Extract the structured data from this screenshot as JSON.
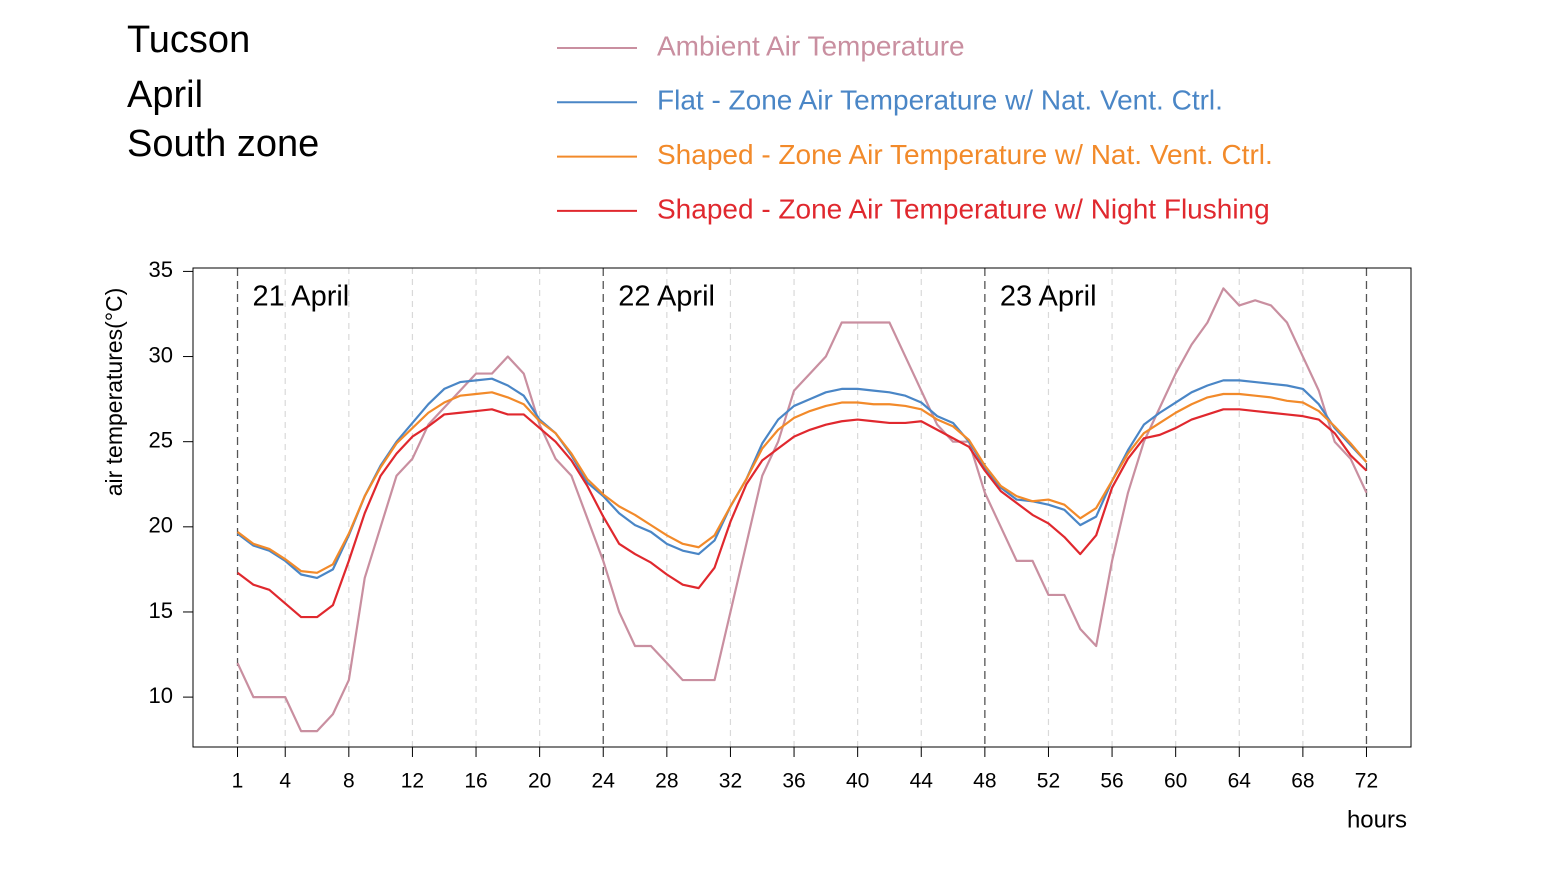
{
  "chart_data": {
    "type": "line",
    "title_lines": [
      "Tucson",
      "April",
      "South zone"
    ],
    "xlabel": "hours",
    "ylabel": "air temperatures(°C)",
    "annotations": [
      {
        "text": "21 April",
        "x": 1
      },
      {
        "text": "22 April",
        "x": 24
      },
      {
        "text": "23 April",
        "x": 48
      }
    ],
    "day_lines": [
      1,
      24,
      48,
      72
    ],
    "x": [
      1,
      2,
      3,
      4,
      5,
      6,
      7,
      8,
      9,
      10,
      11,
      12,
      13,
      14,
      15,
      16,
      17,
      18,
      19,
      20,
      21,
      22,
      23,
      24,
      25,
      26,
      27,
      28,
      29,
      30,
      31,
      32,
      33,
      34,
      35,
      36,
      37,
      38,
      39,
      40,
      41,
      42,
      43,
      44,
      45,
      46,
      47,
      48,
      49,
      50,
      51,
      52,
      53,
      54,
      55,
      56,
      57,
      58,
      59,
      60,
      61,
      62,
      63,
      64,
      65,
      66,
      67,
      68,
      69,
      70,
      71,
      72
    ],
    "xlim": [
      -1.8,
      74.8
    ],
    "xticks": [
      1,
      4,
      8,
      12,
      16,
      20,
      24,
      28,
      32,
      36,
      40,
      44,
      48,
      52,
      56,
      60,
      64,
      68,
      72
    ],
    "ylim": [
      7.07,
      35.2
    ],
    "yticks": [
      10,
      15,
      20,
      25,
      30,
      35
    ],
    "grid": true,
    "series": [
      {
        "name": "Ambient Air Temperature",
        "color": "#c98fa0",
        "values": [
          12,
          10,
          10,
          10,
          8,
          8,
          9,
          11,
          17,
          20,
          23,
          24,
          26,
          27,
          28,
          29,
          29,
          30,
          29,
          26,
          24,
          23,
          20.5,
          18,
          15,
          13,
          13,
          12,
          11,
          11,
          11,
          15,
          19,
          23,
          25,
          28,
          29,
          30,
          32,
          32,
          32,
          32,
          30,
          28,
          26,
          25,
          25,
          22,
          20,
          18,
          18,
          16,
          16,
          14,
          13,
          18,
          22,
          25,
          27,
          29,
          30.7,
          32,
          34,
          33,
          33.3,
          33,
          32,
          30,
          28,
          25,
          24,
          22
        ]
      },
      {
        "name": "Flat - Zone Air Temperature w/ Nat. Vent. Ctrl.",
        "color": "#4a86c6",
        "values": [
          19.6,
          18.9,
          18.6,
          18.0,
          17.2,
          17.0,
          17.5,
          19.5,
          21.8,
          23.6,
          25.0,
          26.1,
          27.2,
          28.1,
          28.5,
          28.6,
          28.7,
          28.3,
          27.7,
          26.3,
          25.5,
          24.2,
          22.6,
          21.8,
          20.8,
          20.1,
          19.7,
          19.0,
          18.6,
          18.4,
          19.2,
          21.2,
          22.8,
          24.9,
          26.3,
          27.1,
          27.5,
          27.9,
          28.1,
          28.1,
          28.0,
          27.9,
          27.7,
          27.3,
          26.5,
          26.1,
          25.0,
          23.5,
          22.3,
          21.6,
          21.5,
          21.3,
          21.0,
          20.1,
          20.6,
          22.7,
          24.5,
          26.0,
          26.7,
          27.3,
          27.9,
          28.3,
          28.6,
          28.6,
          28.5,
          28.4,
          28.3,
          28.1,
          27.2,
          25.8,
          24.8,
          23.8
        ]
      },
      {
        "name": "Shaped - Zone Air Temperature w/ Nat. Vent. Ctrl.",
        "color": "#f28a2a",
        "values": [
          19.7,
          19.0,
          18.7,
          18.1,
          17.4,
          17.3,
          17.8,
          19.6,
          21.8,
          23.5,
          24.9,
          25.8,
          26.7,
          27.3,
          27.7,
          27.8,
          27.9,
          27.6,
          27.2,
          26.2,
          25.5,
          24.3,
          22.8,
          21.9,
          21.2,
          20.7,
          20.1,
          19.5,
          19.0,
          18.8,
          19.5,
          21.2,
          22.8,
          24.6,
          25.7,
          26.4,
          26.8,
          27.1,
          27.3,
          27.3,
          27.2,
          27.2,
          27.1,
          26.9,
          26.3,
          25.9,
          25.1,
          23.6,
          22.4,
          21.8,
          21.5,
          21.6,
          21.3,
          20.5,
          21.1,
          22.7,
          24.3,
          25.5,
          26.1,
          26.7,
          27.2,
          27.6,
          27.8,
          27.8,
          27.7,
          27.6,
          27.4,
          27.3,
          26.8,
          25.9,
          24.9,
          23.8
        ]
      },
      {
        "name": "Shaped - Zone Air Temperature w/ Night Flushing",
        "color": "#e0282e",
        "values": [
          17.3,
          16.6,
          16.3,
          15.5,
          14.7,
          14.7,
          15.4,
          18.0,
          20.8,
          23.0,
          24.3,
          25.3,
          25.9,
          26.6,
          26.7,
          26.8,
          26.9,
          26.6,
          26.6,
          25.8,
          25.0,
          23.9,
          22.4,
          20.6,
          19.0,
          18.4,
          17.9,
          17.2,
          16.6,
          16.4,
          17.6,
          20.3,
          22.5,
          23.9,
          24.6,
          25.3,
          25.7,
          26.0,
          26.2,
          26.3,
          26.2,
          26.1,
          26.1,
          26.2,
          25.7,
          25.2,
          24.7,
          23.3,
          22.1,
          21.4,
          20.7,
          20.2,
          19.4,
          18.4,
          19.5,
          22.3,
          24.0,
          25.2,
          25.4,
          25.8,
          26.3,
          26.6,
          26.9,
          26.9,
          26.8,
          26.7,
          26.6,
          26.5,
          26.3,
          25.5,
          24.2,
          23.3
        ]
      }
    ]
  }
}
